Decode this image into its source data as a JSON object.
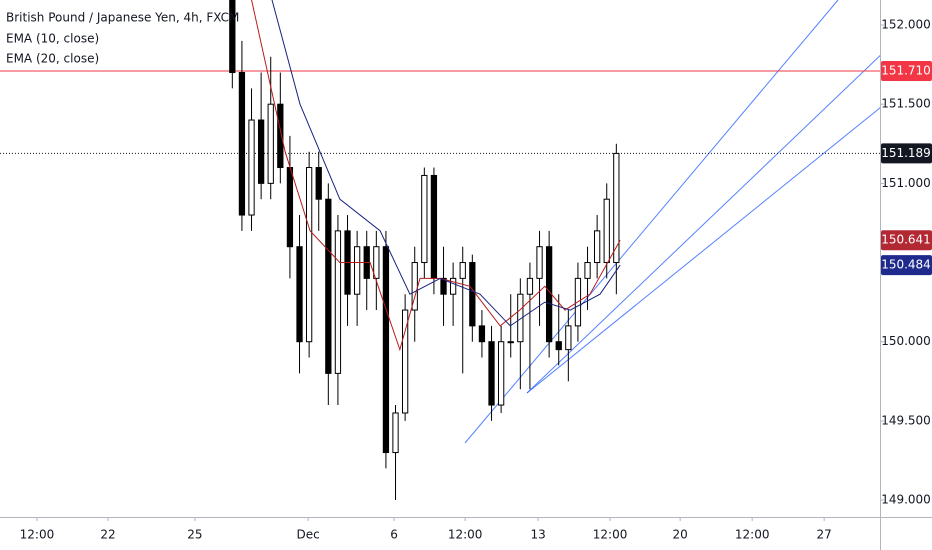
{
  "chart_data": {
    "type": "candlestick",
    "title": "British Pound / Japanese Yen, 4h, FXCM",
    "x": [
      48.4,
      50.4,
      52.4,
      54.4,
      56.4,
      58.4,
      60.4,
      62.4,
      64.4,
      66.4,
      68.4,
      70.4,
      72.4,
      74.4,
      76.4,
      78.4,
      80.4,
      82.4,
      84.4,
      86.4,
      88.4,
      90.4,
      92.4,
      94.4,
      96.4,
      98.4,
      100.4,
      102.4,
      104.4,
      106.4,
      108.4,
      110.4,
      112.4,
      114.4,
      116.4,
      118.4,
      120.4,
      122.4,
      124.4,
      126.4,
      128.4
    ],
    "open": [
      152.2,
      151.7,
      150.8,
      151.4,
      151.0,
      151.5,
      151.1,
      150.6,
      150.0,
      151.1,
      150.9,
      149.8,
      150.7,
      150.3,
      150.6,
      150.4,
      150.6,
      149.3,
      149.55,
      150.2,
      150.5,
      151.05,
      150.4,
      150.3,
      150.4,
      150.5,
      150.1,
      150.0,
      149.6,
      150.0,
      150.0,
      150.3,
      150.4,
      150.6,
      150.0,
      149.95,
      150.1,
      150.4,
      150.5,
      150.5,
      150.5
    ],
    "high": [
      152.3,
      151.9,
      151.6,
      151.7,
      151.8,
      151.7,
      151.3,
      150.8,
      151.2,
      151.2,
      151.0,
      150.8,
      150.8,
      150.7,
      150.7,
      150.7,
      150.7,
      149.6,
      150.3,
      150.6,
      151.1,
      151.1,
      150.6,
      150.5,
      150.6,
      150.55,
      150.2,
      150.1,
      150.1,
      150.3,
      150.4,
      150.5,
      150.7,
      150.7,
      150.3,
      150.2,
      150.5,
      150.6,
      150.8,
      151.0,
      151.25
    ],
    "low": [
      151.6,
      150.7,
      150.7,
      150.9,
      150.9,
      151.0,
      150.4,
      149.8,
      149.9,
      150.7,
      149.6,
      149.6,
      150.1,
      150.1,
      150.2,
      150.2,
      149.2,
      149.0,
      149.5,
      150.0,
      150.4,
      150.3,
      150.1,
      150.1,
      149.8,
      150.0,
      149.9,
      149.5,
      149.55,
      149.9,
      149.7,
      149.7,
      150.1,
      149.9,
      149.85,
      149.75,
      150.0,
      150.2,
      150.4,
      150.4,
      150.3
    ],
    "close": [
      151.7,
      150.8,
      151.4,
      151.0,
      151.5,
      151.1,
      150.6,
      150.0,
      151.1,
      150.9,
      149.8,
      150.7,
      150.3,
      150.6,
      150.4,
      150.6,
      149.3,
      149.55,
      150.2,
      150.5,
      151.05,
      150.4,
      150.3,
      150.4,
      150.5,
      150.1,
      150.0,
      149.6,
      150.0,
      150.0,
      150.3,
      150.4,
      150.6,
      150.0,
      149.95,
      150.1,
      150.4,
      150.5,
      150.7,
      150.9,
      151.189
    ],
    "up_color": "#ffffff",
    "down_color": "#000000",
    "series": [
      {
        "name": "EMA (10, close)",
        "color": "#b71c1c",
        "x": [
          52.1,
          59.4,
          64.6,
          70.8,
          77.1,
          83.3,
          87.5,
          91.7,
          97.9,
          104.2,
          108.3,
          113.5,
          117.7,
          122.9,
          129.2
        ],
        "values": [
          152.2,
          151.2,
          150.7,
          150.5,
          150.5,
          149.95,
          150.4,
          150.4,
          150.35,
          150.1,
          150.2,
          150.35,
          150.2,
          150.3,
          150.641
        ]
      },
      {
        "name": "EMA (20, close)",
        "color": "#1a237e",
        "x": [
          56.3,
          62.5,
          70.8,
          79.2,
          85.4,
          91.7,
          100,
          106.3,
          113.5,
          118.8,
          125,
          129.2
        ],
        "values": [
          152.2,
          151.5,
          150.9,
          150.7,
          150.3,
          150.4,
          150.3,
          150.1,
          150.25,
          150.2,
          150.3,
          150.484
        ]
      }
    ],
    "xlim": [
      0,
      183.33
    ],
    "ylim": [
      148.893,
      152.158
    ],
    "xticks": [
      {
        "value": 7.7,
        "label": "12:00"
      },
      {
        "value": 22.5,
        "label": "22"
      },
      {
        "value": 40.6,
        "label": "25"
      },
      {
        "value": 64.2,
        "label": "Dec"
      },
      {
        "value": 82.1,
        "label": "6"
      },
      {
        "value": 96.9,
        "label": "12:00"
      },
      {
        "value": 112.1,
        "label": "13"
      },
      {
        "value": 127.1,
        "label": "12:00"
      },
      {
        "value": 141.7,
        "label": "20"
      },
      {
        "value": 156.7,
        "label": "12:00"
      },
      {
        "value": 171.7,
        "label": "27"
      }
    ],
    "yticks": [
      {
        "value": 149,
        "label": "149.000"
      },
      {
        "value": 149.5,
        "label": "149.500"
      },
      {
        "value": 150,
        "label": "150.000"
      },
      {
        "value": 150.5,
        "label": "150.500"
      },
      {
        "value": 151,
        "label": "151.000"
      },
      {
        "value": 151.5,
        "label": "151.500"
      },
      {
        "value": 152,
        "label": "152.000"
      }
    ],
    "price_labels": [
      {
        "value": 151.71,
        "label": "151.710",
        "color": "#f23645",
        "line": "solid"
      },
      {
        "value": 151.189,
        "label": "151.189",
        "color": "#131722",
        "line": "dotted"
      },
      {
        "value": 150.641,
        "label": "150.641",
        "color": "#b22833"
      },
      {
        "value": 150.484,
        "label": "150.484",
        "color": "#1e2a8c"
      }
    ]
  }
}
